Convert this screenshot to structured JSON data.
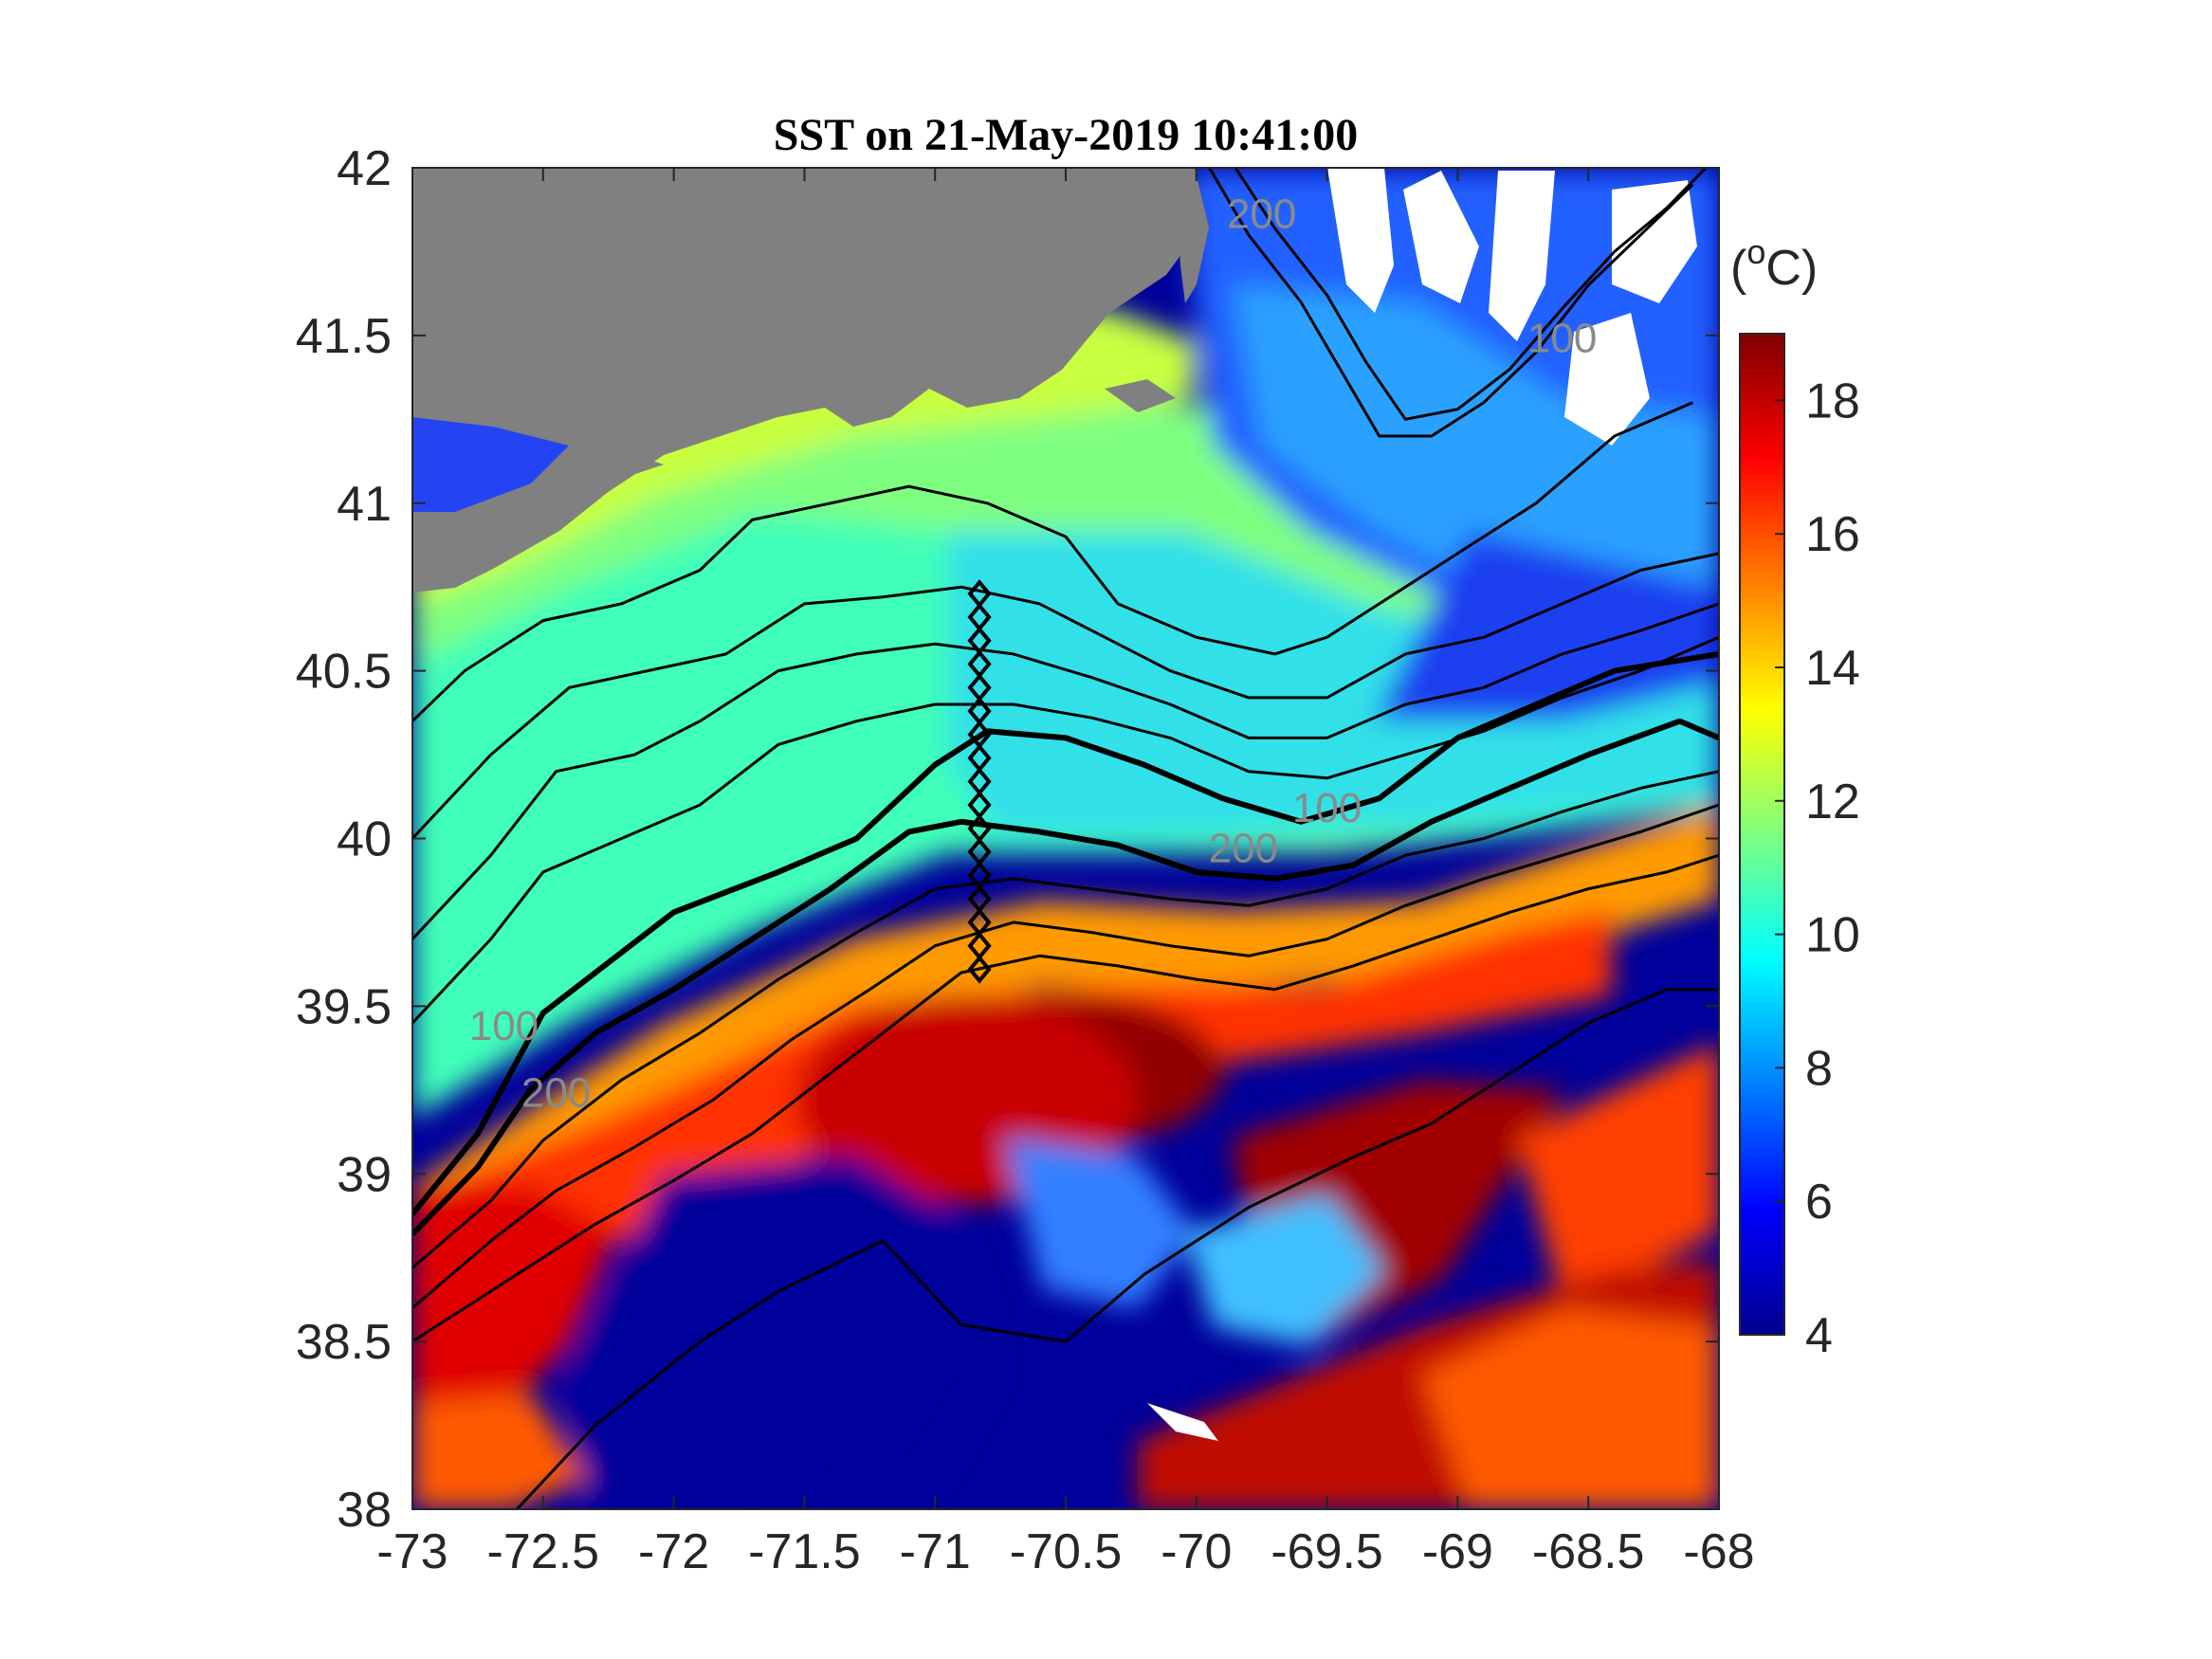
{
  "chart_data": {
    "type": "heatmap",
    "title": "SST on 21-May-2019 10:41:00",
    "xlim": [
      -73,
      -68
    ],
    "ylim": [
      38,
      42
    ],
    "x_ticks": [
      "-73",
      "-72.5",
      "-72",
      "-71.5",
      "-71",
      "-70.5",
      "-70",
      "-69.5",
      "-69",
      "-68.5",
      "-68"
    ],
    "y_ticks": [
      "38",
      "38.5",
      "39",
      "39.5",
      "40",
      "40.5",
      "41",
      "41.5",
      "42"
    ],
    "colorbar": {
      "label_prefix": "(",
      "label_super": "o",
      "label_suffix": "C)",
      "range": [
        4,
        19
      ],
      "ticks": [
        "4",
        "6",
        "8",
        "10",
        "12",
        "14",
        "16",
        "18"
      ],
      "colormap": "jet"
    },
    "land_color": "#808080",
    "no_data_color": "#ffffff",
    "contour_labels": [
      {
        "text": "200",
        "lon": -69.75,
        "lat": 41.82
      },
      {
        "text": "100",
        "lon": -68.6,
        "lat": 41.45
      },
      {
        "text": "100",
        "lon": -69.5,
        "lat": 40.05
      },
      {
        "text": "200",
        "lon": -69.82,
        "lat": 39.93
      },
      {
        "text": "100",
        "lon": -72.65,
        "lat": 39.4
      },
      {
        "text": "200",
        "lon": -72.45,
        "lat": 39.2
      }
    ],
    "transect": {
      "lon": -70.83,
      "lats": [
        40.73,
        40.66,
        40.59,
        40.52,
        40.45,
        40.38,
        40.31,
        40.24,
        40.17,
        40.1,
        40.03,
        39.96,
        39.89,
        39.82,
        39.75,
        39.68,
        39.61
      ]
    },
    "isobaths": [
      {
        "name": "100",
        "bold": true,
        "points": [
          [
            -73.0,
            38.88
          ],
          [
            -72.75,
            39.12
          ],
          [
            -72.5,
            39.48
          ],
          [
            -72.3,
            39.6
          ],
          [
            -72.0,
            39.78
          ],
          [
            -71.6,
            39.9
          ],
          [
            -71.3,
            40.0
          ],
          [
            -71.0,
            40.22
          ],
          [
            -70.8,
            40.32
          ],
          [
            -70.5,
            40.3
          ],
          [
            -70.2,
            40.22
          ],
          [
            -69.9,
            40.12
          ],
          [
            -69.6,
            40.05
          ],
          [
            -69.3,
            40.12
          ],
          [
            -69.0,
            40.3
          ],
          [
            -68.7,
            40.4
          ],
          [
            -68.4,
            40.5
          ],
          [
            -68.0,
            40.55
          ]
        ]
      },
      {
        "name": "200",
        "bold": true,
        "points": [
          [
            -73.0,
            38.82
          ],
          [
            -72.75,
            39.02
          ],
          [
            -72.55,
            39.25
          ],
          [
            -72.3,
            39.42
          ],
          [
            -72.0,
            39.55
          ],
          [
            -71.7,
            39.7
          ],
          [
            -71.4,
            39.85
          ],
          [
            -71.1,
            40.02
          ],
          [
            -70.9,
            40.05
          ],
          [
            -70.6,
            40.02
          ],
          [
            -70.3,
            39.98
          ],
          [
            -70.0,
            39.9
          ],
          [
            -69.7,
            39.88
          ],
          [
            -69.4,
            39.92
          ],
          [
            -69.1,
            40.05
          ],
          [
            -68.8,
            40.15
          ],
          [
            -68.5,
            40.25
          ],
          [
            -68.15,
            40.35
          ],
          [
            -68.0,
            40.3
          ]
        ]
      },
      {
        "name": "c1",
        "bold": false,
        "points": [
          [
            -73.0,
            40.35
          ],
          [
            -72.8,
            40.5
          ],
          [
            -72.5,
            40.65
          ],
          [
            -72.2,
            40.7
          ],
          [
            -71.9,
            40.8
          ],
          [
            -71.7,
            40.95
          ],
          [
            -71.4,
            41.0
          ],
          [
            -71.1,
            41.05
          ],
          [
            -70.8,
            41.0
          ],
          [
            -70.5,
            40.9
          ],
          [
            -70.3,
            40.7
          ],
          [
            -70.0,
            40.6
          ],
          [
            -69.7,
            40.55
          ],
          [
            -69.5,
            40.6
          ],
          [
            -69.2,
            40.75
          ],
          [
            -69.0,
            40.85
          ],
          [
            -68.7,
            41.0
          ],
          [
            -68.4,
            41.2
          ],
          [
            -68.1,
            41.3
          ]
        ]
      },
      {
        "name": "c2",
        "bold": false,
        "points": [
          [
            -73.0,
            40.0
          ],
          [
            -72.7,
            40.25
          ],
          [
            -72.4,
            40.45
          ],
          [
            -72.1,
            40.5
          ],
          [
            -71.8,
            40.55
          ],
          [
            -71.5,
            40.7
          ],
          [
            -71.2,
            40.72
          ],
          [
            -70.9,
            40.75
          ],
          [
            -70.6,
            40.7
          ],
          [
            -70.4,
            40.62
          ],
          [
            -70.1,
            40.5
          ],
          [
            -69.8,
            40.42
          ],
          [
            -69.5,
            40.42
          ],
          [
            -69.2,
            40.55
          ],
          [
            -68.9,
            40.6
          ],
          [
            -68.6,
            40.7
          ],
          [
            -68.3,
            40.8
          ],
          [
            -68.0,
            40.85
          ]
        ]
      },
      {
        "name": "c3",
        "bold": false,
        "points": [
          [
            -73.0,
            39.7
          ],
          [
            -72.7,
            39.95
          ],
          [
            -72.45,
            40.2
          ],
          [
            -72.15,
            40.25
          ],
          [
            -71.9,
            40.35
          ],
          [
            -71.6,
            40.5
          ],
          [
            -71.3,
            40.55
          ],
          [
            -71.0,
            40.58
          ],
          [
            -70.7,
            40.55
          ],
          [
            -70.4,
            40.48
          ],
          [
            -70.1,
            40.4
          ],
          [
            -69.8,
            40.3
          ],
          [
            -69.5,
            40.3
          ],
          [
            -69.2,
            40.4
          ],
          [
            -68.9,
            40.45
          ],
          [
            -68.6,
            40.55
          ],
          [
            -68.3,
            40.62
          ],
          [
            -68.0,
            40.7
          ]
        ]
      },
      {
        "name": "c4",
        "bold": false,
        "points": [
          [
            -73.0,
            39.45
          ],
          [
            -72.7,
            39.7
          ],
          [
            -72.5,
            39.9
          ],
          [
            -72.2,
            40.0
          ],
          [
            -71.9,
            40.1
          ],
          [
            -71.6,
            40.28
          ],
          [
            -71.3,
            40.35
          ],
          [
            -71.0,
            40.4
          ],
          [
            -70.7,
            40.4
          ],
          [
            -70.4,
            40.36
          ],
          [
            -70.1,
            40.3
          ],
          [
            -69.8,
            40.2
          ],
          [
            -69.5,
            40.18
          ],
          [
            -69.2,
            40.25
          ],
          [
            -68.9,
            40.32
          ],
          [
            -68.6,
            40.42
          ],
          [
            -68.3,
            40.5
          ],
          [
            -68.0,
            40.6
          ]
        ]
      },
      {
        "name": "c5",
        "bold": false,
        "points": [
          [
            -73.0,
            38.72
          ],
          [
            -72.7,
            38.92
          ],
          [
            -72.5,
            39.1
          ],
          [
            -72.2,
            39.28
          ],
          [
            -71.9,
            39.42
          ],
          [
            -71.6,
            39.58
          ],
          [
            -71.3,
            39.72
          ],
          [
            -71.0,
            39.85
          ],
          [
            -70.7,
            39.88
          ],
          [
            -70.4,
            39.85
          ],
          [
            -70.1,
            39.82
          ],
          [
            -69.8,
            39.8
          ],
          [
            -69.5,
            39.85
          ],
          [
            -69.2,
            39.95
          ],
          [
            -68.9,
            40.0
          ],
          [
            -68.6,
            40.08
          ],
          [
            -68.3,
            40.15
          ],
          [
            -68.0,
            40.2
          ]
        ]
      },
      {
        "name": "c6",
        "bold": false,
        "points": [
          [
            -73.0,
            38.6
          ],
          [
            -72.7,
            38.8
          ],
          [
            -72.45,
            38.95
          ],
          [
            -72.15,
            39.08
          ],
          [
            -71.85,
            39.22
          ],
          [
            -71.55,
            39.4
          ],
          [
            -71.25,
            39.55
          ],
          [
            -71.0,
            39.68
          ],
          [
            -70.7,
            39.75
          ],
          [
            -70.4,
            39.72
          ],
          [
            -70.1,
            39.68
          ],
          [
            -69.8,
            39.65
          ],
          [
            -69.5,
            39.7
          ],
          [
            -69.2,
            39.8
          ],
          [
            -68.9,
            39.88
          ],
          [
            -68.6,
            39.95
          ],
          [
            -68.3,
            40.02
          ],
          [
            -68.0,
            40.1
          ]
        ]
      },
      {
        "name": "c7",
        "bold": false,
        "points": [
          [
            -73.0,
            38.5
          ],
          [
            -72.6,
            38.7
          ],
          [
            -72.3,
            38.85
          ],
          [
            -72.0,
            38.98
          ],
          [
            -71.7,
            39.12
          ],
          [
            -71.4,
            39.3
          ],
          [
            -71.15,
            39.45
          ],
          [
            -70.9,
            39.6
          ],
          [
            -70.6,
            39.65
          ],
          [
            -70.3,
            39.62
          ],
          [
            -70.0,
            39.58
          ],
          [
            -69.7,
            39.55
          ],
          [
            -69.4,
            39.62
          ],
          [
            -69.1,
            39.7
          ],
          [
            -68.8,
            39.78
          ],
          [
            -68.5,
            39.85
          ],
          [
            -68.2,
            39.9
          ],
          [
            -68.0,
            39.95
          ]
        ]
      },
      {
        "name": "deep",
        "bold": false,
        "points": [
          [
            -72.6,
            38.0
          ],
          [
            -72.3,
            38.25
          ],
          [
            -71.9,
            38.5
          ],
          [
            -71.6,
            38.65
          ],
          [
            -71.2,
            38.8
          ],
          [
            -70.9,
            38.55
          ],
          [
            -70.5,
            38.5
          ],
          [
            -70.2,
            38.7
          ],
          [
            -69.8,
            38.9
          ],
          [
            -69.4,
            39.05
          ],
          [
            -69.1,
            39.15
          ],
          [
            -68.8,
            39.3
          ],
          [
            -68.5,
            39.45
          ],
          [
            -68.2,
            39.55
          ],
          [
            -68.0,
            39.55
          ]
        ]
      },
      {
        "name": "gom1",
        "bold": false,
        "points": [
          [
            -69.95,
            42.0
          ],
          [
            -69.8,
            41.8
          ],
          [
            -69.6,
            41.6
          ],
          [
            -69.45,
            41.4
          ],
          [
            -69.3,
            41.2
          ],
          [
            -69.1,
            41.2
          ],
          [
            -68.9,
            41.3
          ],
          [
            -68.7,
            41.45
          ],
          [
            -68.5,
            41.65
          ],
          [
            -68.3,
            41.8
          ],
          [
            -68.1,
            41.95
          ]
        ]
      },
      {
        "name": "gom2",
        "bold": false,
        "points": [
          [
            -69.85,
            42.0
          ],
          [
            -69.7,
            41.82
          ],
          [
            -69.5,
            41.62
          ],
          [
            -69.35,
            41.42
          ],
          [
            -69.2,
            41.25
          ],
          [
            -69.0,
            41.28
          ],
          [
            -68.8,
            41.4
          ],
          [
            -68.6,
            41.58
          ],
          [
            -68.4,
            41.75
          ],
          [
            -68.2,
            41.88
          ],
          [
            -68.05,
            42.0
          ]
        ]
      }
    ]
  }
}
